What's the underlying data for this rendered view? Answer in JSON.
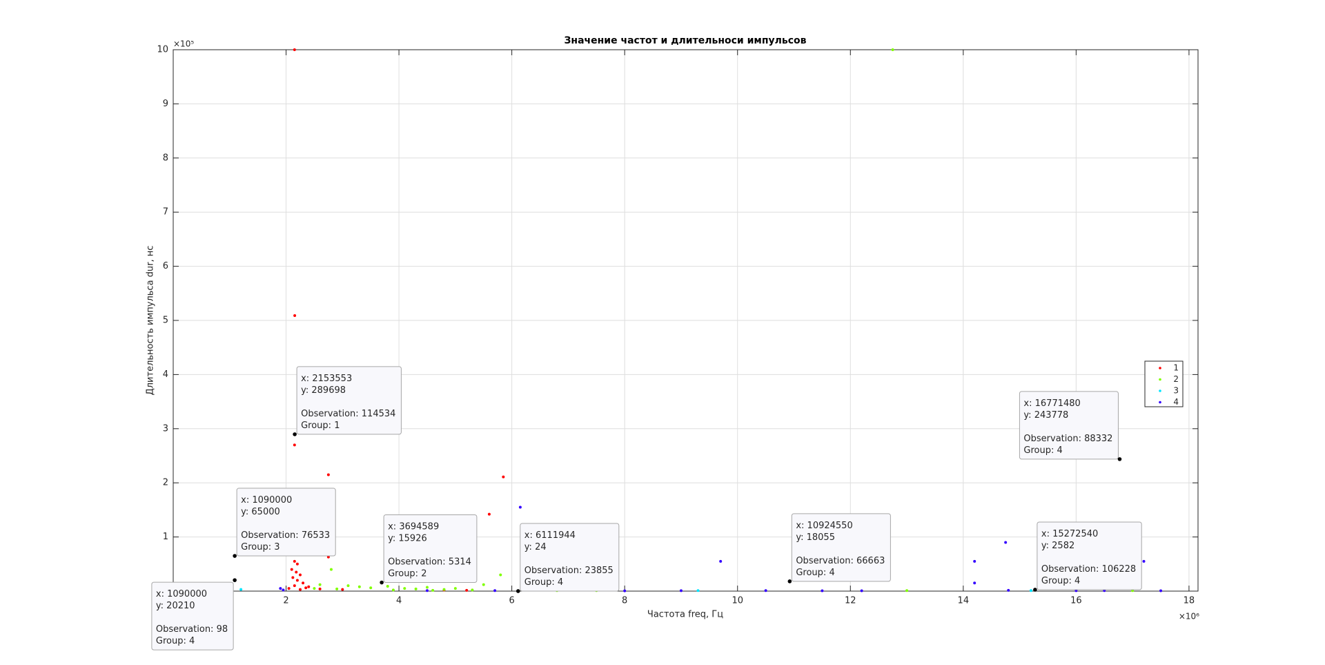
{
  "chart_data": {
    "type": "scatter",
    "title": "Значение частот и длительноси импульсов",
    "x_label": "Частота freq, Гц",
    "y_label": "Длительность импульса dur, нс",
    "x_multiplier": "×10⁶",
    "y_multiplier": "×10⁵",
    "xlim": [
      0,
      18160000
    ],
    "ylim": [
      0,
      1000000
    ],
    "xticks": [
      {
        "value": 2000000,
        "label": "2"
      },
      {
        "value": 4000000,
        "label": "4"
      },
      {
        "value": 6000000,
        "label": "6"
      },
      {
        "value": 8000000,
        "label": "8"
      },
      {
        "value": 10000000,
        "label": "10"
      },
      {
        "value": 12000000,
        "label": "12"
      },
      {
        "value": 14000000,
        "label": "14"
      },
      {
        "value": 16000000,
        "label": "16"
      },
      {
        "value": 18000000,
        "label": "18"
      }
    ],
    "yticks": [
      {
        "value": 100000,
        "label": "1"
      },
      {
        "value": 200000,
        "label": "2"
      },
      {
        "value": 300000,
        "label": "3"
      },
      {
        "value": 400000,
        "label": "4"
      },
      {
        "value": 500000,
        "label": "5"
      },
      {
        "value": 600000,
        "label": "6"
      },
      {
        "value": 700000,
        "label": "7"
      },
      {
        "value": 800000,
        "label": "8"
      },
      {
        "value": 900000,
        "label": "9"
      },
      {
        "value": 1000000,
        "label": "10"
      }
    ],
    "grid": true,
    "legend_position": "right",
    "series": [
      {
        "name": "1",
        "color": "#ff0000",
        "x": [
          2150000,
          2153553,
          2153553,
          2150000,
          2750000,
          5850000,
          5600000,
          2750000,
          2150000,
          2200000,
          2100000,
          2180000,
          2250000,
          2120000,
          2200000,
          2300000,
          2150000,
          2400000,
          2050000,
          2600000,
          3000000,
          4800000,
          5200000,
          2250000,
          2350000
        ],
        "values": [
          1000000,
          509000,
          289698,
          270000,
          215000,
          211000,
          142000,
          63000,
          55000,
          50000,
          40000,
          35000,
          30000,
          25000,
          20000,
          15000,
          10000,
          8000,
          5000,
          4000,
          3000,
          2000,
          1500,
          3000,
          6000
        ]
      },
      {
        "name": "2",
        "color": "#80ff00",
        "x": [
          12750000,
          2850000,
          2800000,
          5800000,
          3694589,
          2600000,
          3100000,
          3300000,
          3500000,
          3800000,
          4100000,
          4300000,
          4500000,
          4800000,
          5000000,
          5500000,
          5300000,
          6300000,
          6800000,
          7200000,
          7500000,
          2500000,
          2900000,
          3900000,
          4600000,
          13000000,
          17000000
        ],
        "values": [
          1000000,
          108000,
          40000,
          30000,
          15926,
          12000,
          10000,
          8000,
          6000,
          9000,
          5000,
          4000,
          7000,
          3000,
          5000,
          12000,
          2000,
          3000,
          1000,
          2000,
          1000,
          5000,
          4000,
          2000,
          1500,
          1000,
          1000
        ]
      },
      {
        "name": "3",
        "color": "#00e5ff",
        "x": [
          1090000,
          1200000,
          6200000,
          9300000,
          15200000
        ],
        "values": [
          65000,
          3000,
          47000,
          1000,
          1000
        ]
      },
      {
        "name": "4",
        "color": "#3300ff",
        "x": [
          6150000,
          9700000,
          14200000,
          14750000,
          17200000,
          16771480,
          14200000,
          1090000,
          6111944,
          10924550,
          15272540,
          1900000,
          5700000,
          8000000,
          9000000,
          10500000,
          11500000,
          12200000,
          14800000,
          16000000,
          16500000,
          17500000,
          1950000,
          4500000
        ],
        "values": [
          155000,
          55000,
          55000,
          90000,
          55000,
          243778,
          15000,
          20210,
          24,
          18055,
          2582,
          5000,
          1000,
          500,
          800,
          1000,
          600,
          700,
          1500,
          800,
          1000,
          600,
          2000,
          1000
        ]
      }
    ],
    "datatip_labels": [
      "x:",
      "y:",
      "Observation:",
      "Group:"
    ],
    "datatips": [
      {
        "x": 2153553,
        "y": 289698,
        "observation": 114534,
        "group": 1
      },
      {
        "x": 1090000,
        "y": 65000,
        "observation": 76533,
        "group": 3
      },
      {
        "x": 1090000,
        "y": 20210,
        "observation": 98,
        "group": 4
      },
      {
        "x": 3694589,
        "y": 15926,
        "observation": 5314,
        "group": 2
      },
      {
        "x": 6111944,
        "y": 24,
        "observation": 23855,
        "group": 4
      },
      {
        "x": 10924550,
        "y": 18055,
        "observation": 66663,
        "group": 4
      },
      {
        "x": 16771480,
        "y": 243778,
        "observation": 88332,
        "group": 4
      },
      {
        "x": 15272540,
        "y": 2582,
        "observation": 106228,
        "group": 4
      }
    ]
  }
}
